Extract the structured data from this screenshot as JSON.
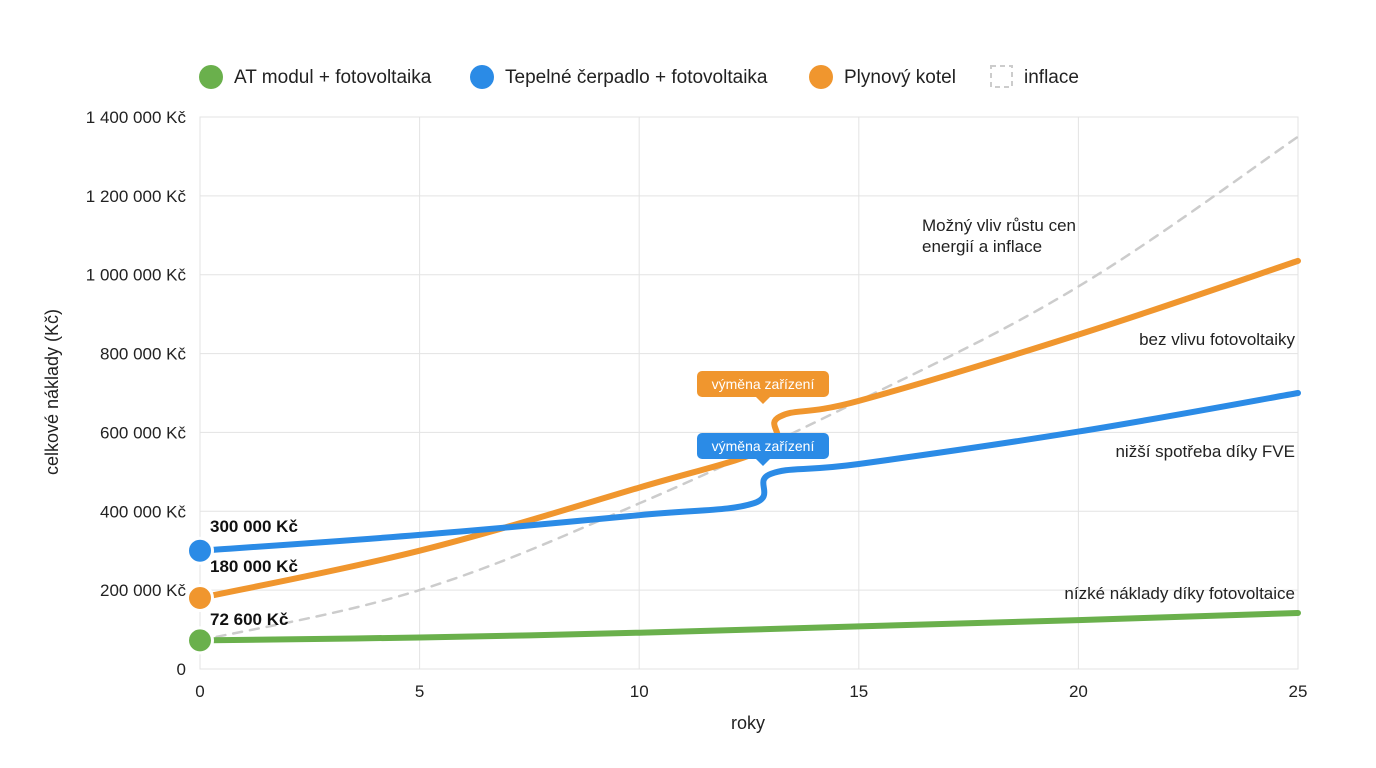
{
  "chart_data": {
    "type": "line",
    "xlabel": "roky",
    "ylabel": "celkové náklady (Kč)",
    "xlim": [
      0,
      25
    ],
    "ylim": [
      0,
      1400000
    ],
    "grid": true,
    "legend_position": "top",
    "x_ticks": [
      {
        "value": 0,
        "label": "0"
      },
      {
        "value": 5,
        "label": "5"
      },
      {
        "value": 10,
        "label": "10"
      },
      {
        "value": 15,
        "label": "15"
      },
      {
        "value": 20,
        "label": "20"
      },
      {
        "value": 25,
        "label": "25"
      }
    ],
    "y_ticks": [
      {
        "value": 0,
        "label": "0"
      },
      {
        "value": 200000,
        "label": "200 000 Kč"
      },
      {
        "value": 400000,
        "label": "400 000 Kč"
      },
      {
        "value": 600000,
        "label": "600 000 Kč"
      },
      {
        "value": 800000,
        "label": "800 000 Kč"
      },
      {
        "value": 1000000,
        "label": "1 000 000 Kč"
      },
      {
        "value": 1200000,
        "label": "1 200 000 Kč"
      },
      {
        "value": 1400000,
        "label": "1 400 000 Kč"
      }
    ],
    "series": [
      {
        "name": "AT modul + fotovoltaika",
        "color": "#6ab04c",
        "style": "solid",
        "x": [
          0,
          5,
          10,
          15,
          20,
          25
        ],
        "y": [
          72600,
          80000,
          92000,
          108000,
          124000,
          142000
        ],
        "start_label": "72 600 Kč",
        "end_annotation": "nízké náklady díky fotovoltaice"
      },
      {
        "name": "Tepelné čerpadlo + fotovoltaika",
        "color": "#2b8be6",
        "style": "solid",
        "x": [
          0,
          5,
          10,
          12.6,
          13.0,
          15,
          20,
          25
        ],
        "y": [
          300000,
          340000,
          390000,
          420000,
          495000,
          520000,
          602000,
          700000
        ],
        "start_label": "300 000 Kč",
        "end_annotation": "nižší spotřeba díky FVE"
      },
      {
        "name": "Plynový kotel",
        "color": "#f0962e",
        "style": "solid",
        "x": [
          0,
          5,
          10,
          12.9,
          13.2,
          15,
          20,
          25
        ],
        "y": [
          180000,
          300000,
          460000,
          560000,
          640000,
          680000,
          848000,
          1035000
        ],
        "start_label": "180 000 Kč",
        "end_annotation": "bez vlivu fotovoltaiky"
      },
      {
        "name": "inflace",
        "color": "#cccccc",
        "style": "dashed",
        "x": [
          0,
          5,
          10,
          15,
          20,
          25
        ],
        "y": [
          72600,
          200000,
          420000,
          680000,
          970000,
          1350000
        ],
        "end_annotation": "Možný vliv růstu cen energií a inflace"
      }
    ],
    "events": [
      {
        "label": "výměna zařízení",
        "color": "#f0962e",
        "x": 13.0,
        "y": 640000
      },
      {
        "label": "výměna zařízení",
        "color": "#2b8be6",
        "x": 13.0,
        "y": 515000
      }
    ],
    "inflation_annotation_lines": [
      "Možný vliv růstu cen",
      "energií a inflace"
    ]
  }
}
